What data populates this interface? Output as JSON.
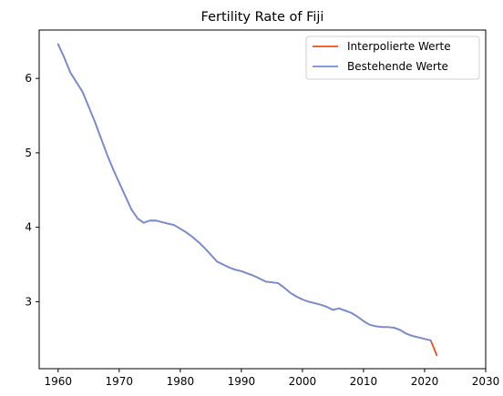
{
  "chart_data": {
    "type": "line",
    "title": "Fertility Rate of Fiji",
    "xlabel": "",
    "ylabel": "",
    "xlim": [
      1956.9,
      2030
    ],
    "ylim": [
      2.1,
      6.65
    ],
    "xticks": [
      1960,
      1970,
      1980,
      1990,
      2000,
      2010,
      2020,
      2030
    ],
    "yticks": [
      3,
      4,
      5,
      6
    ],
    "grid": false,
    "legend_position": "top-right",
    "series": [
      {
        "name": "Interpolierte Werte",
        "color": "#e8501f",
        "x": [
          1960,
          1961,
          1962,
          1963,
          1964,
          1965,
          1966,
          1967,
          1968,
          1969,
          1970,
          1971,
          1972,
          1973,
          1974,
          1975,
          1976,
          1977,
          1978,
          1979,
          1980,
          1981,
          1982,
          1983,
          1984,
          1985,
          1986,
          1987,
          1988,
          1989,
          1990,
          1991,
          1992,
          1993,
          1994,
          1995,
          1996,
          1997,
          1998,
          1999,
          2000,
          2001,
          2002,
          2003,
          2004,
          2005,
          2006,
          2007,
          2008,
          2009,
          2010,
          2011,
          2012,
          2013,
          2014,
          2015,
          2016,
          2017,
          2018,
          2019,
          2020,
          2021,
          2022
        ],
        "y": [
          6.46,
          6.28,
          6.08,
          5.95,
          5.82,
          5.62,
          5.42,
          5.2,
          4.98,
          4.78,
          4.6,
          4.42,
          4.24,
          4.12,
          4.06,
          4.09,
          4.09,
          4.07,
          4.05,
          4.03,
          3.98,
          3.93,
          3.87,
          3.8,
          3.72,
          3.63,
          3.54,
          3.5,
          3.46,
          3.43,
          3.41,
          3.38,
          3.35,
          3.31,
          3.27,
          3.26,
          3.25,
          3.19,
          3.12,
          3.07,
          3.03,
          3.0,
          2.98,
          2.96,
          2.93,
          2.89,
          2.91,
          2.88,
          2.85,
          2.8,
          2.74,
          2.69,
          2.67,
          2.66,
          2.66,
          2.65,
          2.62,
          2.57,
          2.54,
          2.52,
          2.5,
          2.48,
          2.28
        ]
      },
      {
        "name": "Bestehende Werte",
        "color": "#6f8fd8",
        "x": [
          1960,
          1961,
          1962,
          1963,
          1964,
          1965,
          1966,
          1967,
          1968,
          1969,
          1970,
          1971,
          1972,
          1973,
          1974,
          1975,
          1976,
          1977,
          1978,
          1979,
          1980,
          1981,
          1982,
          1983,
          1984,
          1985,
          1986,
          1987,
          1988,
          1989,
          1990,
          1991,
          1992,
          1993,
          1994,
          1995,
          1996,
          1997,
          1998,
          1999,
          2000,
          2001,
          2002,
          2003,
          2004,
          2005,
          2006,
          2007,
          2008,
          2009,
          2010,
          2011,
          2012,
          2013,
          2014,
          2015,
          2016,
          2017,
          2018,
          2019,
          2020,
          2021
        ],
        "y": [
          6.46,
          6.28,
          6.08,
          5.95,
          5.82,
          5.62,
          5.42,
          5.2,
          4.98,
          4.78,
          4.6,
          4.42,
          4.24,
          4.12,
          4.06,
          4.09,
          4.09,
          4.07,
          4.05,
          4.03,
          3.98,
          3.93,
          3.87,
          3.8,
          3.72,
          3.63,
          3.54,
          3.5,
          3.46,
          3.43,
          3.41,
          3.38,
          3.35,
          3.31,
          3.27,
          3.26,
          3.25,
          3.19,
          3.12,
          3.07,
          3.03,
          3.0,
          2.98,
          2.96,
          2.93,
          2.89,
          2.91,
          2.88,
          2.85,
          2.8,
          2.74,
          2.69,
          2.67,
          2.66,
          2.66,
          2.65,
          2.62,
          2.57,
          2.54,
          2.52,
          2.5,
          2.48
        ]
      }
    ]
  }
}
